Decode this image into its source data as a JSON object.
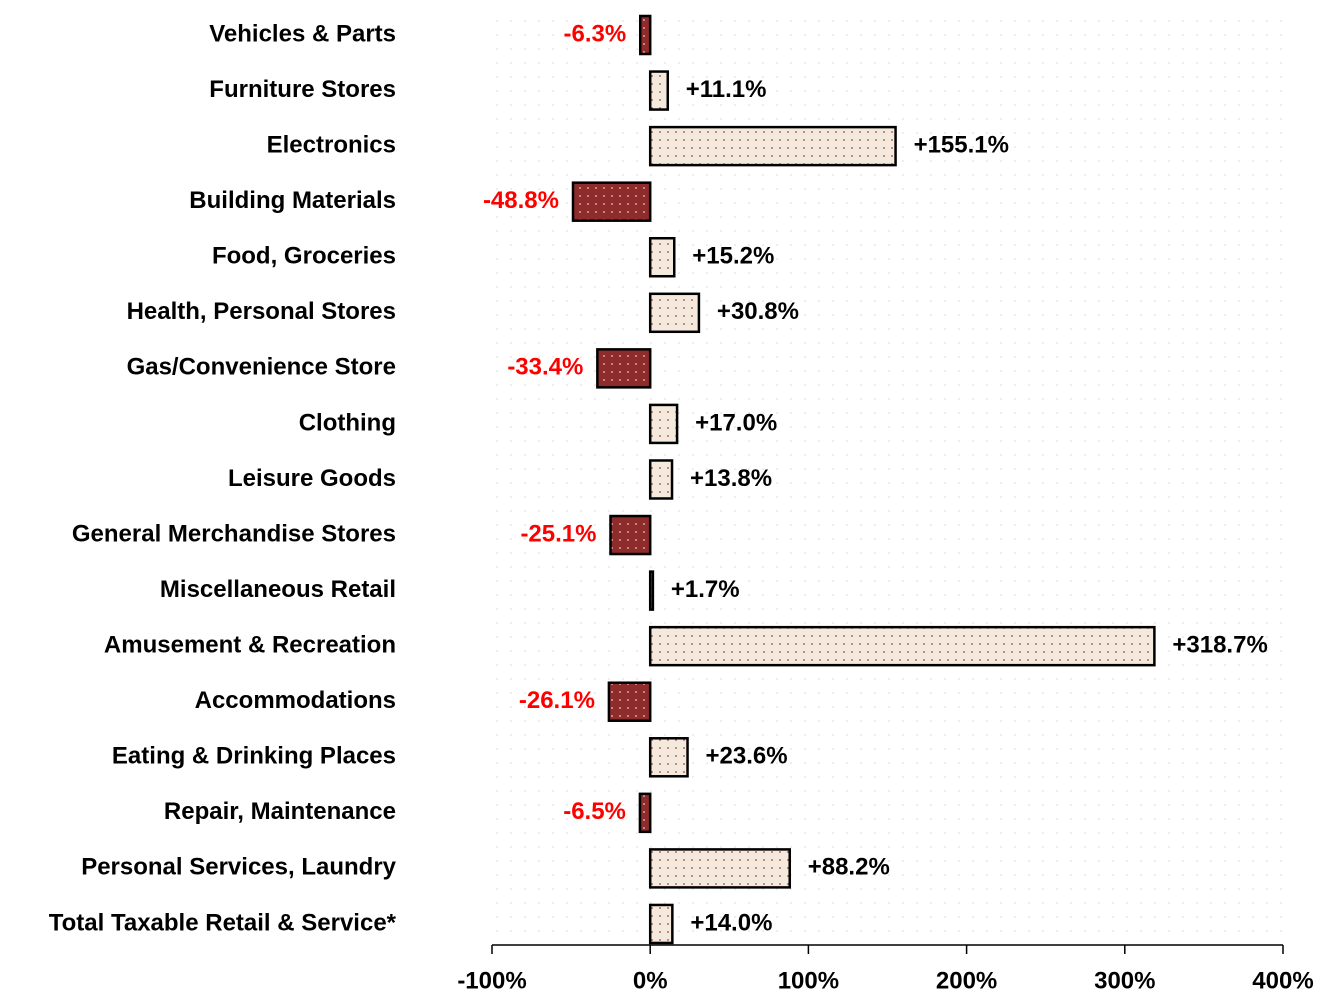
{
  "chart_data": {
    "type": "hbar",
    "categories": [
      "Vehicles & Parts",
      "Furniture Stores",
      "Electronics",
      "Building Materials",
      "Food, Groceries",
      "Health, Personal Stores",
      "Gas/Convenience Store",
      "Clothing",
      "Leisure Goods",
      "General Merchandise Stores",
      "Miscellaneous Retail",
      "Amusement & Recreation",
      "Accommodations",
      "Eating & Drinking Places",
      "Repair, Maintenance",
      "Personal Services, Laundry",
      "Total Taxable Retail & Service*"
    ],
    "values": [
      -6.3,
      11.1,
      155.1,
      -48.8,
      15.2,
      30.8,
      -33.4,
      17.0,
      13.8,
      -25.1,
      1.7,
      318.7,
      -26.1,
      23.6,
      -6.5,
      88.2,
      14.0
    ],
    "value_labels": [
      "-6.3%",
      "+11.1%",
      "+155.1%",
      "-48.8%",
      "+15.2%",
      "+30.8%",
      "-33.4%",
      "+17.0%",
      "+13.8%",
      "-25.1%",
      "+1.7%",
      "+318.7%",
      "-26.1%",
      "+23.6%",
      "-6.5%",
      "+88.2%",
      "+14.0%"
    ],
    "xlim": [
      -100,
      400
    ],
    "xticks": [
      {
        "value": -100,
        "label": "-100%"
      },
      {
        "value": 0,
        "label": "0%"
      },
      {
        "value": 100,
        "label": "100%"
      },
      {
        "value": 200,
        "label": "200%"
      },
      {
        "value": 300,
        "label": "300%"
      },
      {
        "value": 400,
        "label": "400%"
      }
    ],
    "positive_color": "#f3e9dd",
    "negative_color": "#8e2b2b",
    "positive_label_color": "#000000",
    "negative_label_color": "#ff0000"
  }
}
